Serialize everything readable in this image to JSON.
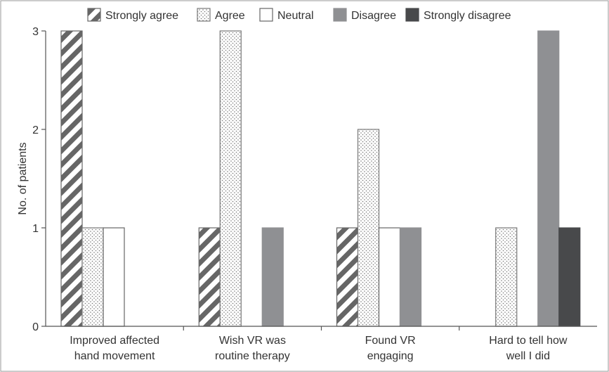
{
  "chart_data": {
    "type": "bar",
    "ylabel": "No. of patients",
    "xlabel": "",
    "ylim": [
      0,
      3
    ],
    "yticks": [
      "0",
      "1",
      "2",
      "3"
    ],
    "legend_position": "top",
    "categories": [
      [
        "Improved affected",
        "hand movement"
      ],
      [
        "Wish VR was",
        "routine therapy"
      ],
      [
        "Found VR",
        "engaging"
      ],
      [
        "Hard to tell how",
        "well I did"
      ]
    ],
    "series": [
      {
        "name": "Strongly agree",
        "pattern": "hatch",
        "color": "#ffffff",
        "stroke": "#666666",
        "values": [
          3,
          1,
          1,
          0
        ]
      },
      {
        "name": "Agree",
        "pattern": "dots",
        "color": "#ffffff",
        "stroke": "#777777",
        "values": [
          1,
          3,
          2,
          1
        ]
      },
      {
        "name": "Neutral",
        "pattern": "solid",
        "color": "#ffffff",
        "stroke": "#666666",
        "values": [
          1,
          0,
          1,
          0
        ]
      },
      {
        "name": "Disagree",
        "pattern": "solid",
        "color": "#8f9093",
        "stroke": "#8f9093",
        "values": [
          0,
          1,
          1,
          3
        ]
      },
      {
        "name": "Strongly disagree",
        "pattern": "solid",
        "color": "#48494b",
        "stroke": "#48494b",
        "values": [
          0,
          0,
          0,
          1
        ]
      }
    ]
  }
}
